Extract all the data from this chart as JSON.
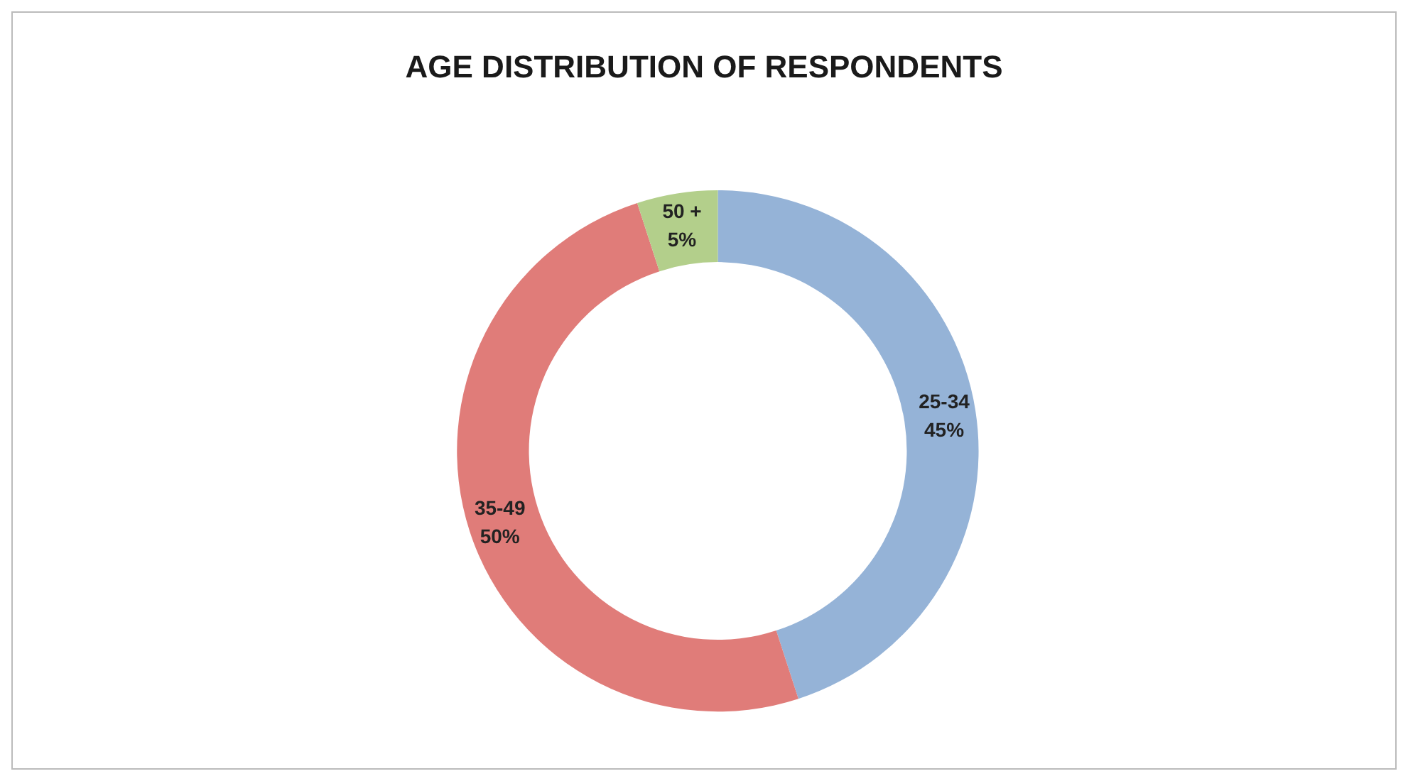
{
  "chart_data": {
    "type": "donut",
    "title": "AGE DISTRIBUTION OF RESPONDENTS",
    "categories": [
      "25-34",
      "35-49",
      "50 +"
    ],
    "values": [
      45,
      50,
      5
    ],
    "value_labels": [
      "45%",
      "50%",
      "5%"
    ],
    "colors": [
      "#95b3d7",
      "#e07c79",
      "#b3cf8b"
    ],
    "legend": false
  }
}
